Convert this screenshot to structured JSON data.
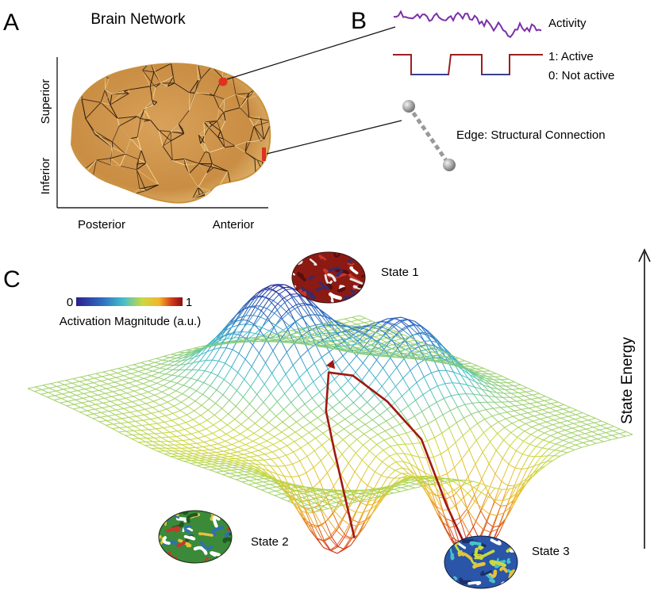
{
  "panels": {
    "a": {
      "letter": "A",
      "title": "Brain Network",
      "axis_superior": "Superior",
      "axis_inferior": "Inferior",
      "axis_posterior": "Posterior",
      "axis_anterior": "Anterior"
    },
    "b": {
      "letter": "B",
      "activity_label": "Activity",
      "active_label": "1: Active",
      "not_active_label": "0: Not active",
      "edge_label": "Edge: Structural Connection"
    },
    "c": {
      "letter": "C",
      "colorbar_min": "0",
      "colorbar_max": "1",
      "colorbar_label": "Activation Magnitude (a.u.)",
      "state1": "State 1",
      "state2": "State 2",
      "state3": "State 3",
      "energy_axis": "State Energy"
    }
  },
  "colors": {
    "activity_trace": "#7b2fa8",
    "binary_active": "#9a1f1f",
    "binary_inactive": "#3b3f8f",
    "node_marker": "#e0301e",
    "trajectory": "#a01812",
    "colormap": [
      "#2b1f8c",
      "#2e6fc4",
      "#47c1c9",
      "#c8d940",
      "#f3b52c",
      "#d23a1a",
      "#8b0f0f"
    ]
  }
}
